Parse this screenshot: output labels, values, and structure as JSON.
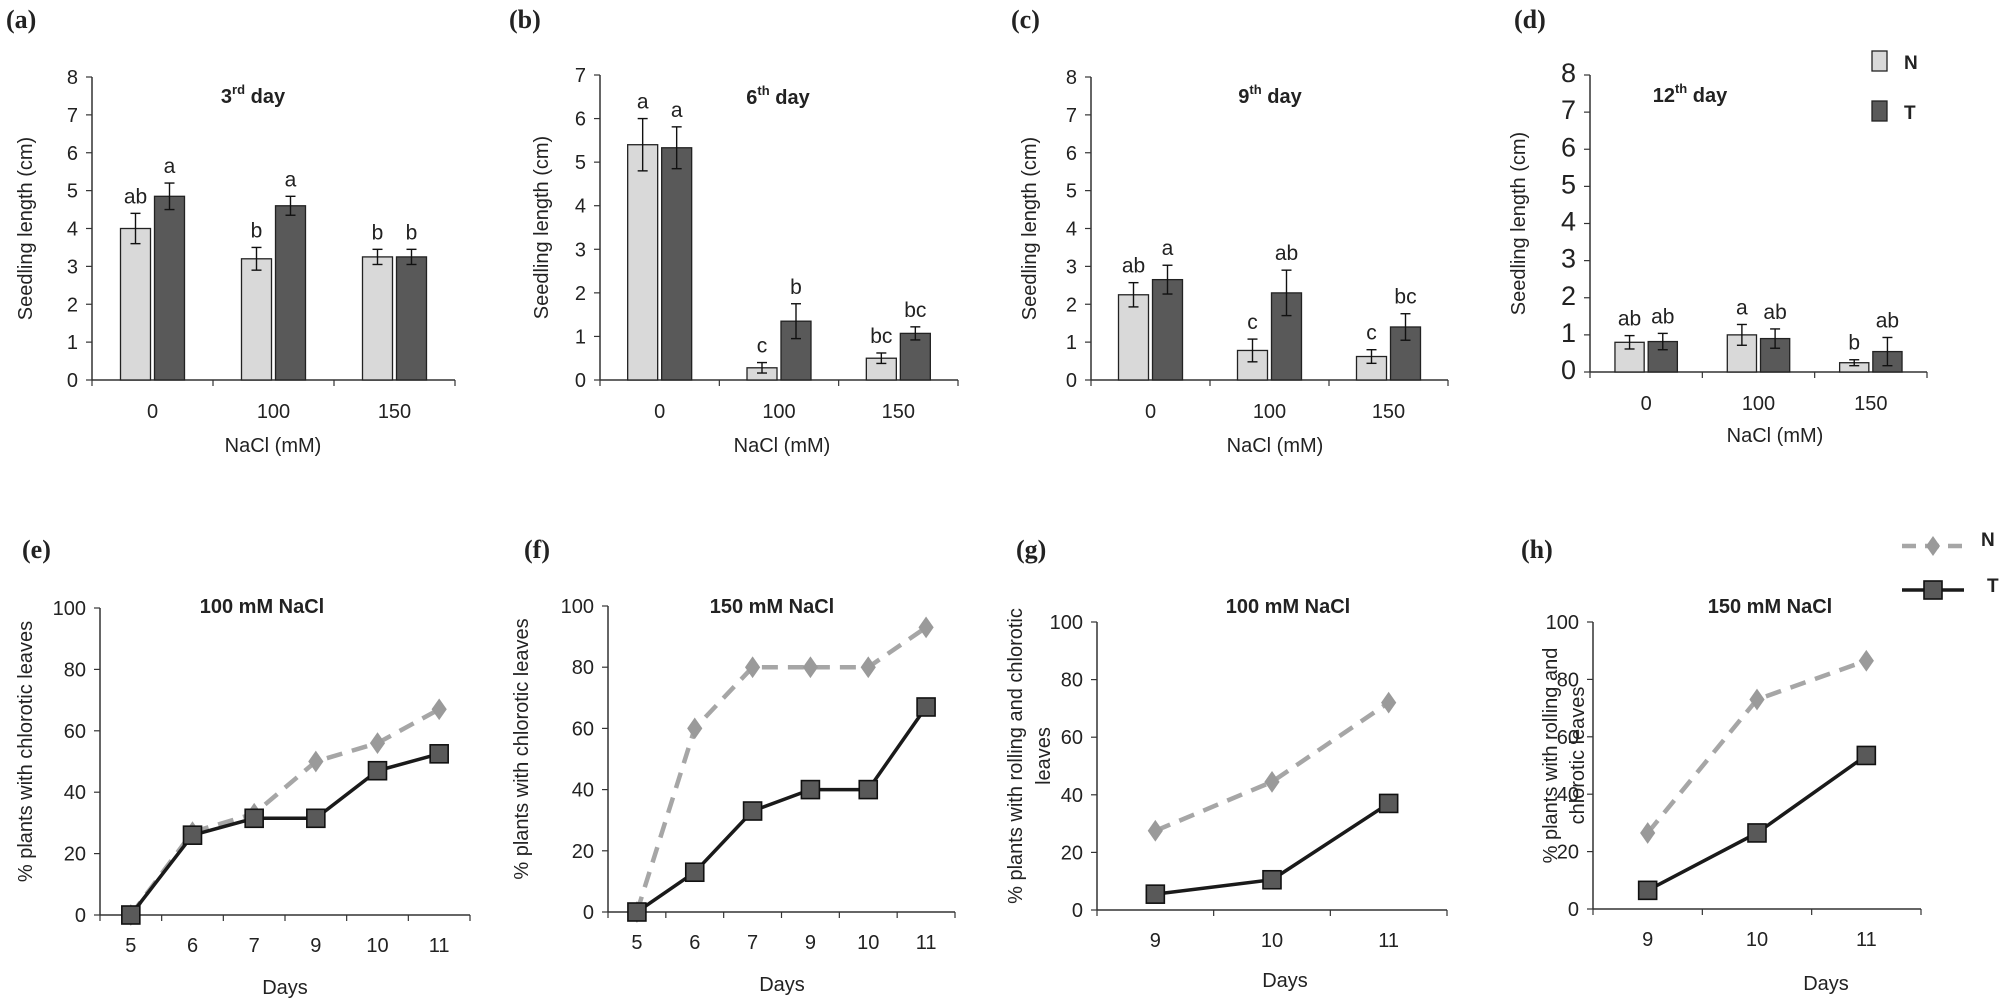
{
  "colors": {
    "N": "#d9d9d9",
    "T": "#595959",
    "N_line": "#a6a6a6",
    "T_line": "#1a1a1a",
    "marker_N": "#9a9a9a",
    "marker_T": "#595959"
  },
  "legend_bar": {
    "N": "N",
    "T": "T"
  },
  "legend_line": {
    "N": "N",
    "T": "T"
  },
  "chart_data": [
    {
      "panel": "(a)",
      "type": "bar",
      "title": "3",
      "title_sup": "rd",
      "title_suffix": " day",
      "xlabel": "NaCl (mM)",
      "ylabel": "Seedling length (cm)",
      "ylim": [
        0,
        8
      ],
      "yticks": [
        "0",
        "1",
        "2",
        "3",
        "4",
        "5",
        "6",
        "7",
        "8"
      ],
      "categories": [
        "0",
        "100",
        "150"
      ],
      "series": [
        {
          "name": "N",
          "values": [
            4.0,
            3.2,
            3.25
          ],
          "errors": [
            0.4,
            0.3,
            0.2
          ],
          "labels": [
            "ab",
            "b",
            "b"
          ]
        },
        {
          "name": "T",
          "values": [
            4.85,
            4.6,
            3.25
          ],
          "errors": [
            0.35,
            0.25,
            0.2
          ],
          "labels": [
            "a",
            "a",
            "b"
          ]
        }
      ]
    },
    {
      "panel": "(b)",
      "type": "bar",
      "title": "6",
      "title_sup": "th",
      "title_suffix": " day",
      "xlabel": "NaCl (mM)",
      "ylabel": "Seedling length (cm)",
      "ylim": [
        0,
        7
      ],
      "yticks": [
        "0",
        "1",
        "2",
        "3",
        "4",
        "5",
        "6",
        "7"
      ],
      "categories": [
        "0",
        "100",
        "150"
      ],
      "series": [
        {
          "name": "N",
          "values": [
            5.4,
            0.28,
            0.5
          ],
          "errors": [
            0.6,
            0.12,
            0.12
          ],
          "labels": [
            "a",
            "c",
            "bc"
          ]
        },
        {
          "name": "T",
          "values": [
            5.33,
            1.35,
            1.07
          ],
          "errors": [
            0.48,
            0.4,
            0.15
          ],
          "labels": [
            "a",
            "b",
            "bc"
          ]
        }
      ]
    },
    {
      "panel": "(c)",
      "type": "bar",
      "title": "9",
      "title_sup": "th",
      "title_suffix": " day",
      "xlabel": "NaCl (mM)",
      "ylabel": "Seedling length (cm)",
      "ylim": [
        0,
        8
      ],
      "yticks": [
        "0",
        "1",
        "2",
        "3",
        "4",
        "5",
        "6",
        "7",
        "8"
      ],
      "categories": [
        "0",
        "100",
        "150"
      ],
      "series": [
        {
          "name": "N",
          "values": [
            2.25,
            0.78,
            0.62
          ],
          "errors": [
            0.32,
            0.3,
            0.18
          ],
          "labels": [
            "ab",
            "c",
            "c"
          ]
        },
        {
          "name": "T",
          "values": [
            2.65,
            2.3,
            1.4
          ],
          "errors": [
            0.38,
            0.6,
            0.35
          ],
          "labels": [
            "a",
            "ab",
            "bc"
          ]
        }
      ]
    },
    {
      "panel": "(d)",
      "type": "bar",
      "title": "12",
      "title_sup": "th",
      "title_suffix": " day",
      "xlabel": "NaCl (mM)",
      "ylabel": "Seedling length (cm)",
      "ylim": [
        0,
        8
      ],
      "yticks": [
        "0",
        "1",
        "2",
        "3",
        "4",
        "5",
        "6",
        "7",
        "8"
      ],
      "categories": [
        "0",
        "100",
        "150"
      ],
      "series": [
        {
          "name": "N",
          "values": [
            0.8,
            1.0,
            0.25
          ],
          "errors": [
            0.18,
            0.28,
            0.08
          ],
          "labels": [
            "ab",
            "a",
            "b"
          ]
        },
        {
          "name": "T",
          "values": [
            0.82,
            0.9,
            0.55
          ],
          "errors": [
            0.22,
            0.26,
            0.38
          ],
          "labels": [
            "ab",
            "ab",
            "ab"
          ]
        }
      ]
    },
    {
      "panel": "(e)",
      "type": "line",
      "title": "100 mM NaCl",
      "xlabel": "Days",
      "ylabel": "% plants with chlorotic leaves",
      "ylim": [
        0,
        100
      ],
      "yticks": [
        "0",
        "20",
        "40",
        "60",
        "80",
        "100"
      ],
      "x": [
        "5",
        "6",
        "7",
        "9",
        "10",
        "11"
      ],
      "series": [
        {
          "name": "N",
          "values": [
            0,
            27,
            33,
            50,
            56,
            67
          ]
        },
        {
          "name": "T",
          "values": [
            0,
            26,
            31.5,
            31.5,
            47,
            52.5
          ]
        }
      ]
    },
    {
      "panel": "(f)",
      "type": "line",
      "title": "150 mM NaCl",
      "xlabel": "Days",
      "ylabel": "% plants with chlorotic leaves",
      "ylim": [
        0,
        100
      ],
      "yticks": [
        "0",
        "20",
        "40",
        "60",
        "80",
        "100"
      ],
      "x": [
        "5",
        "6",
        "7",
        "9",
        "10",
        "11"
      ],
      "series": [
        {
          "name": "N",
          "values": [
            0,
            60,
            80,
            80,
            80,
            93
          ]
        },
        {
          "name": "T",
          "values": [
            0,
            13,
            33,
            40,
            40,
            67
          ]
        }
      ]
    },
    {
      "panel": "(g)",
      "type": "line",
      "title": "100 mM NaCl",
      "xlabel": "Days",
      "ylabel": "% plants with rolling and chlorotic leaves",
      "ylabel_lines": [
        "% plants with rolling and chlorotic",
        "leaves"
      ],
      "ylim": [
        0,
        100
      ],
      "yticks": [
        "0",
        "20",
        "40",
        "60",
        "80",
        "100"
      ],
      "x": [
        "9",
        "10",
        "11"
      ],
      "series": [
        {
          "name": "N",
          "values": [
            27.5,
            44.5,
            72
          ]
        },
        {
          "name": "T",
          "values": [
            5.5,
            10.5,
            37
          ]
        }
      ]
    },
    {
      "panel": "(h)",
      "type": "line",
      "title": "150 mM NaCl",
      "xlabel": "Days",
      "ylabel": "% plants with rolling and chlorotic leaves",
      "ylabel_lines": [
        "% plants with rolling and",
        "chlorotic leaves"
      ],
      "ylim": [
        0,
        100
      ],
      "yticks": [
        "0",
        "20",
        "40",
        "60",
        "80",
        "100"
      ],
      "x": [
        "9",
        "10",
        "11"
      ],
      "series": [
        {
          "name": "N",
          "values": [
            26.5,
            73,
            86.5
          ]
        },
        {
          "name": "T",
          "values": [
            6.5,
            26.5,
            53.5
          ]
        }
      ]
    }
  ]
}
